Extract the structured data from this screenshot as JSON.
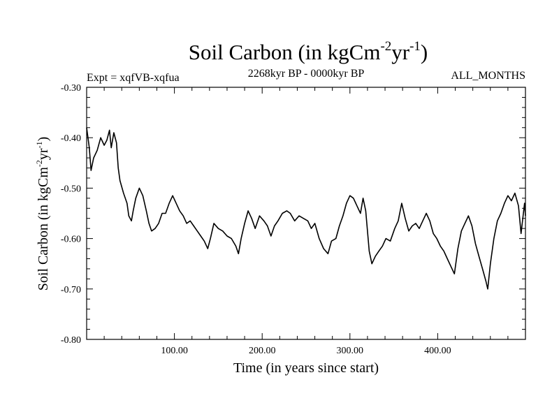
{
  "chart_data": {
    "type": "line",
    "title": {
      "prefix": "Soil Carbon (in kgCm",
      "exp1": "-2",
      "mid": "yr",
      "exp2": "-1",
      "suffix": ")"
    },
    "ylabel": {
      "prefix": "Soil Carbon (in kgCm",
      "exp1": "-2",
      "mid": "yr",
      "exp2": "-1",
      "suffix": ")"
    },
    "left_subtitle": "Expt = xqfVB-xqfua",
    "center_subtitle": "2268kyr BP - 0000kyr BP",
    "right_subtitle": "ALL_MONTHS",
    "xlabel": "Time (in years since start)",
    "xlim": [
      0,
      500
    ],
    "ylim": [
      -0.8,
      -0.3
    ],
    "xticks": [
      100,
      200,
      300,
      400
    ],
    "xtick_labels": [
      "100.00",
      "200.00",
      "300.00",
      "400.00"
    ],
    "yticks": [
      -0.3,
      -0.4,
      -0.5,
      -0.6,
      -0.7,
      -0.8
    ],
    "ytick_labels": [
      "-0.30",
      "-0.40",
      "-0.50",
      "-0.60",
      "-0.70",
      "-0.80"
    ],
    "series": [
      {
        "name": "Soil Carbon",
        "color": "#000000",
        "points": [
          [
            0,
            -0.38
          ],
          [
            3,
            -0.42
          ],
          [
            5,
            -0.465
          ],
          [
            8,
            -0.44
          ],
          [
            12,
            -0.425
          ],
          [
            16,
            -0.4
          ],
          [
            20,
            -0.415
          ],
          [
            23,
            -0.405
          ],
          [
            26,
            -0.385
          ],
          [
            28,
            -0.42
          ],
          [
            31,
            -0.39
          ],
          [
            34,
            -0.41
          ],
          [
            36,
            -0.46
          ],
          [
            38,
            -0.485
          ],
          [
            42,
            -0.51
          ],
          [
            46,
            -0.53
          ],
          [
            48,
            -0.555
          ],
          [
            51,
            -0.565
          ],
          [
            53,
            -0.545
          ],
          [
            56,
            -0.52
          ],
          [
            60,
            -0.5
          ],
          [
            64,
            -0.515
          ],
          [
            68,
            -0.545
          ],
          [
            71,
            -0.57
          ],
          [
            74,
            -0.585
          ],
          [
            78,
            -0.58
          ],
          [
            82,
            -0.57
          ],
          [
            86,
            -0.55
          ],
          [
            90,
            -0.55
          ],
          [
            94,
            -0.53
          ],
          [
            98,
            -0.515
          ],
          [
            102,
            -0.53
          ],
          [
            106,
            -0.545
          ],
          [
            110,
            -0.555
          ],
          [
            114,
            -0.57
          ],
          [
            118,
            -0.565
          ],
          [
            122,
            -0.575
          ],
          [
            126,
            -0.585
          ],
          [
            130,
            -0.595
          ],
          [
            134,
            -0.605
          ],
          [
            138,
            -0.62
          ],
          [
            141,
            -0.6
          ],
          [
            145,
            -0.57
          ],
          [
            150,
            -0.58
          ],
          [
            155,
            -0.585
          ],
          [
            160,
            -0.595
          ],
          [
            165,
            -0.6
          ],
          [
            170,
            -0.615
          ],
          [
            173,
            -0.63
          ],
          [
            176,
            -0.6
          ],
          [
            180,
            -0.57
          ],
          [
            184,
            -0.545
          ],
          [
            188,
            -0.56
          ],
          [
            192,
            -0.58
          ],
          [
            197,
            -0.555
          ],
          [
            202,
            -0.565
          ],
          [
            206,
            -0.575
          ],
          [
            210,
            -0.595
          ],
          [
            214,
            -0.575
          ],
          [
            218,
            -0.565
          ],
          [
            223,
            -0.55
          ],
          [
            228,
            -0.545
          ],
          [
            232,
            -0.55
          ],
          [
            237,
            -0.565
          ],
          [
            242,
            -0.555
          ],
          [
            247,
            -0.56
          ],
          [
            252,
            -0.565
          ],
          [
            256,
            -0.58
          ],
          [
            260,
            -0.57
          ],
          [
            265,
            -0.6
          ],
          [
            270,
            -0.62
          ],
          [
            275,
            -0.63
          ],
          [
            279,
            -0.605
          ],
          [
            284,
            -0.6
          ],
          [
            288,
            -0.575
          ],
          [
            292,
            -0.555
          ],
          [
            296,
            -0.53
          ],
          [
            300,
            -0.515
          ],
          [
            304,
            -0.52
          ],
          [
            308,
            -0.535
          ],
          [
            312,
            -0.55
          ],
          [
            315,
            -0.52
          ],
          [
            318,
            -0.545
          ],
          [
            320,
            -0.585
          ],
          [
            322,
            -0.625
          ],
          [
            325,
            -0.65
          ],
          [
            329,
            -0.635
          ],
          [
            333,
            -0.625
          ],
          [
            337,
            -0.615
          ],
          [
            341,
            -0.6
          ],
          [
            346,
            -0.605
          ],
          [
            351,
            -0.58
          ],
          [
            355,
            -0.565
          ],
          [
            359,
            -0.53
          ],
          [
            363,
            -0.56
          ],
          [
            367,
            -0.585
          ],
          [
            371,
            -0.575
          ],
          [
            375,
            -0.57
          ],
          [
            379,
            -0.58
          ],
          [
            383,
            -0.565
          ],
          [
            387,
            -0.55
          ],
          [
            391,
            -0.565
          ],
          [
            395,
            -0.59
          ],
          [
            399,
            -0.6
          ],
          [
            403,
            -0.615
          ],
          [
            407,
            -0.625
          ],
          [
            411,
            -0.64
          ],
          [
            415,
            -0.655
          ],
          [
            419,
            -0.67
          ],
          [
            423,
            -0.62
          ],
          [
            427,
            -0.585
          ],
          [
            431,
            -0.57
          ],
          [
            435,
            -0.555
          ],
          [
            439,
            -0.575
          ],
          [
            443,
            -0.61
          ],
          [
            447,
            -0.635
          ],
          [
            451,
            -0.66
          ],
          [
            455,
            -0.685
          ],
          [
            457,
            -0.7
          ],
          [
            460,
            -0.65
          ],
          [
            464,
            -0.6
          ],
          [
            468,
            -0.565
          ],
          [
            472,
            -0.55
          ],
          [
            476,
            -0.53
          ],
          [
            480,
            -0.515
          ],
          [
            484,
            -0.525
          ],
          [
            488,
            -0.51
          ],
          [
            492,
            -0.535
          ],
          [
            495,
            -0.59
          ],
          [
            497,
            -0.56
          ],
          [
            499,
            -0.53
          ],
          [
            500,
            -0.555
          ]
        ]
      }
    ]
  }
}
